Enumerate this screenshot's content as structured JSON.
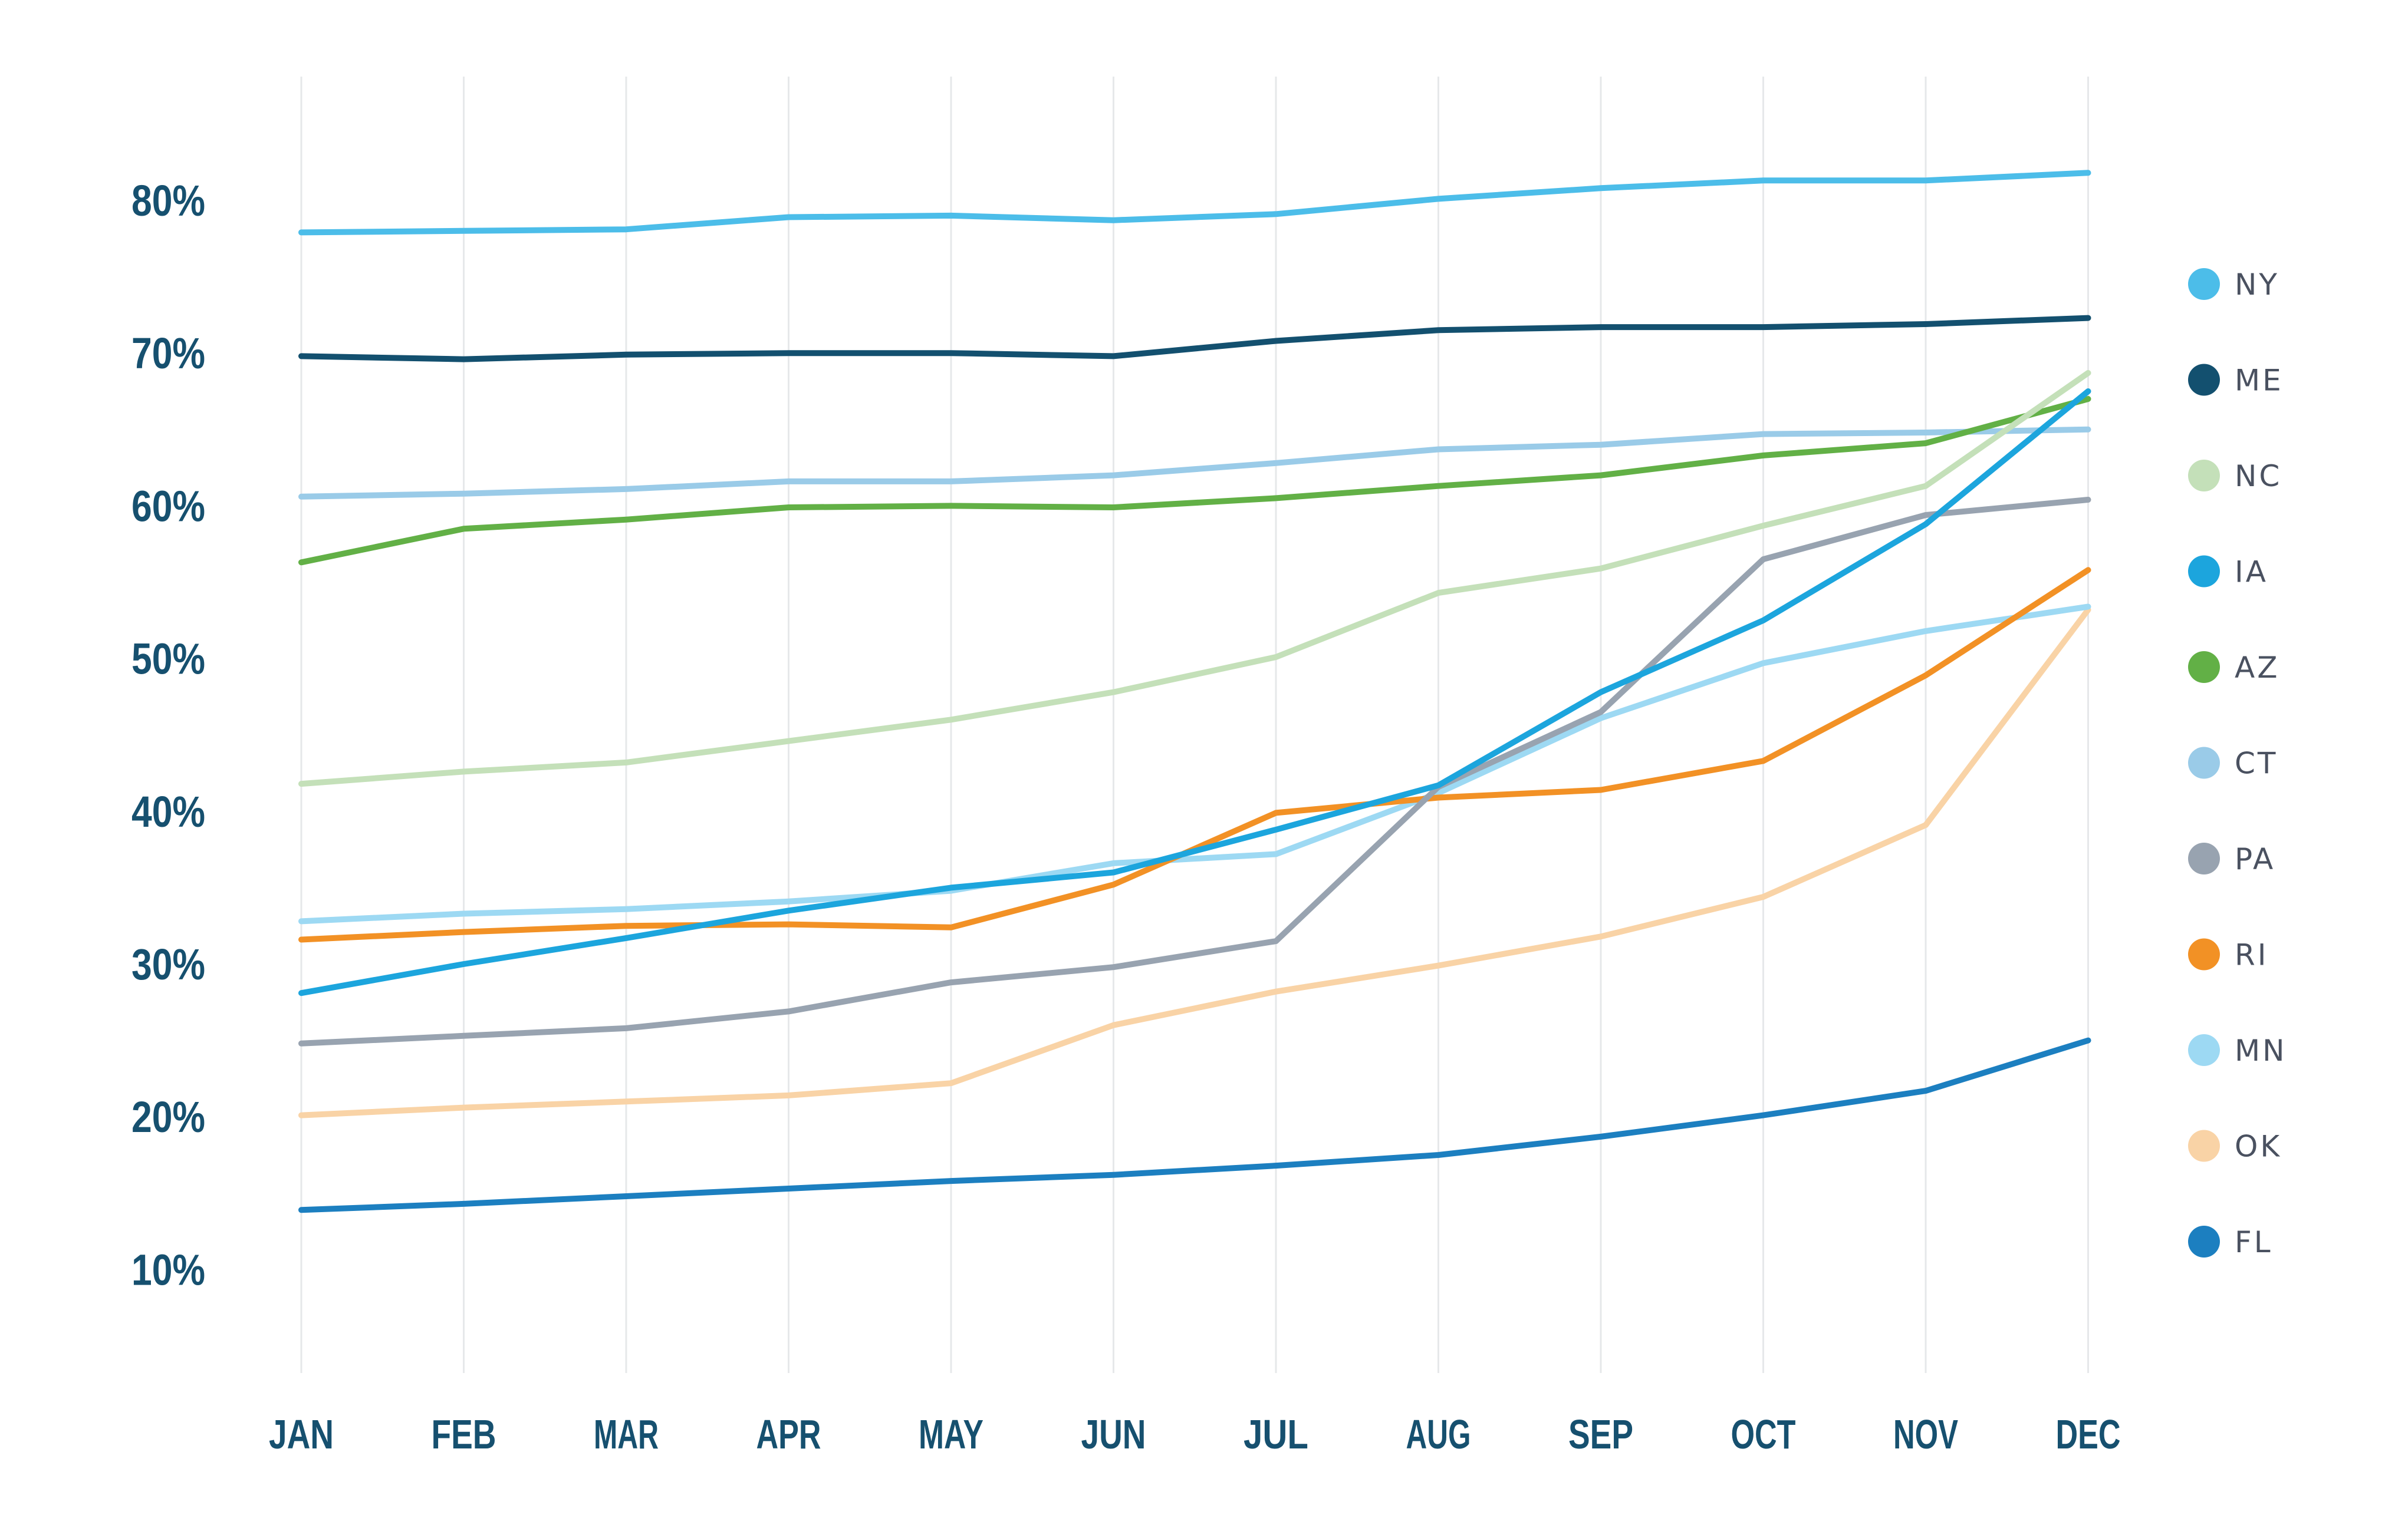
{
  "chart_data": {
    "type": "line",
    "title": "",
    "xlabel": "",
    "ylabel": "",
    "categories": [
      "JAN",
      "FEB",
      "MAR",
      "APR",
      "MAY",
      "JUN",
      "JUL",
      "AUG",
      "SEP",
      "OCT",
      "NOV",
      "DEC"
    ],
    "y_ticks": [
      "80%",
      "70%",
      "60%",
      "50%",
      "40%",
      "30%",
      "20%",
      "10%"
    ],
    "y_tick_values": [
      80,
      70,
      60,
      50,
      40,
      30,
      20,
      10
    ],
    "ylim": [
      5,
      85
    ],
    "grid": "vertical",
    "legend_position": "right",
    "series": [
      {
        "name": "NY",
        "color": "#4cbde9",
        "values": [
          77.9,
          78.0,
          78.1,
          78.9,
          79.0,
          78.7,
          79.1,
          80.1,
          80.8,
          81.3,
          81.3,
          81.8
        ]
      },
      {
        "name": "ME",
        "color": "#13506f",
        "values": [
          69.8,
          69.6,
          69.9,
          70.0,
          70.0,
          69.8,
          70.8,
          71.5,
          71.7,
          71.7,
          71.9,
          72.3
        ]
      },
      {
        "name": "NC",
        "color": "#c4e0b9",
        "values": [
          41.8,
          42.6,
          43.2,
          44.6,
          46.0,
          47.8,
          50.1,
          54.3,
          55.9,
          58.7,
          61.3,
          68.7
        ]
      },
      {
        "name": "IA",
        "color": "#1ca5dd",
        "values": [
          28.1,
          30.0,
          31.7,
          33.5,
          35.0,
          36.0,
          38.8,
          41.7,
          47.8,
          52.5,
          58.8,
          67.5
        ]
      },
      {
        "name": "AZ",
        "color": "#62b046",
        "values": [
          56.3,
          58.5,
          59.1,
          59.9,
          60.0,
          59.9,
          60.5,
          61.3,
          62.0,
          63.3,
          64.1,
          67.0
        ]
      },
      {
        "name": "CT",
        "color": "#9acbe8",
        "values": [
          60.6,
          60.8,
          61.1,
          61.6,
          61.6,
          62.0,
          62.8,
          63.7,
          64.0,
          64.7,
          64.8,
          65.0
        ]
      },
      {
        "name": "PA",
        "color": "#98a3b0",
        "values": [
          24.8,
          25.3,
          25.8,
          26.9,
          28.8,
          29.8,
          31.5,
          41.6,
          46.5,
          56.5,
          59.4,
          60.4
        ]
      },
      {
        "name": "RI",
        "color": "#f29125",
        "values": [
          31.6,
          32.1,
          32.5,
          32.6,
          32.4,
          35.2,
          39.9,
          40.9,
          41.4,
          43.3,
          48.9,
          55.8
        ]
      },
      {
        "name": "MN",
        "color": "#9dd9f3",
        "values": [
          32.8,
          33.3,
          33.6,
          34.1,
          34.8,
          36.6,
          37.2,
          41.2,
          46.1,
          49.7,
          51.8,
          53.4
        ]
      },
      {
        "name": "OK",
        "color": "#f9d3a6",
        "values": [
          20.1,
          20.6,
          21.0,
          21.4,
          22.2,
          26.0,
          28.2,
          29.9,
          31.8,
          34.4,
          39.1,
          53.2
        ]
      },
      {
        "name": "FL",
        "color": "#1c7fc0",
        "values": [
          13.9,
          14.3,
          14.8,
          15.3,
          15.8,
          16.2,
          16.8,
          17.5,
          18.7,
          20.1,
          21.7,
          25.0
        ]
      }
    ]
  }
}
